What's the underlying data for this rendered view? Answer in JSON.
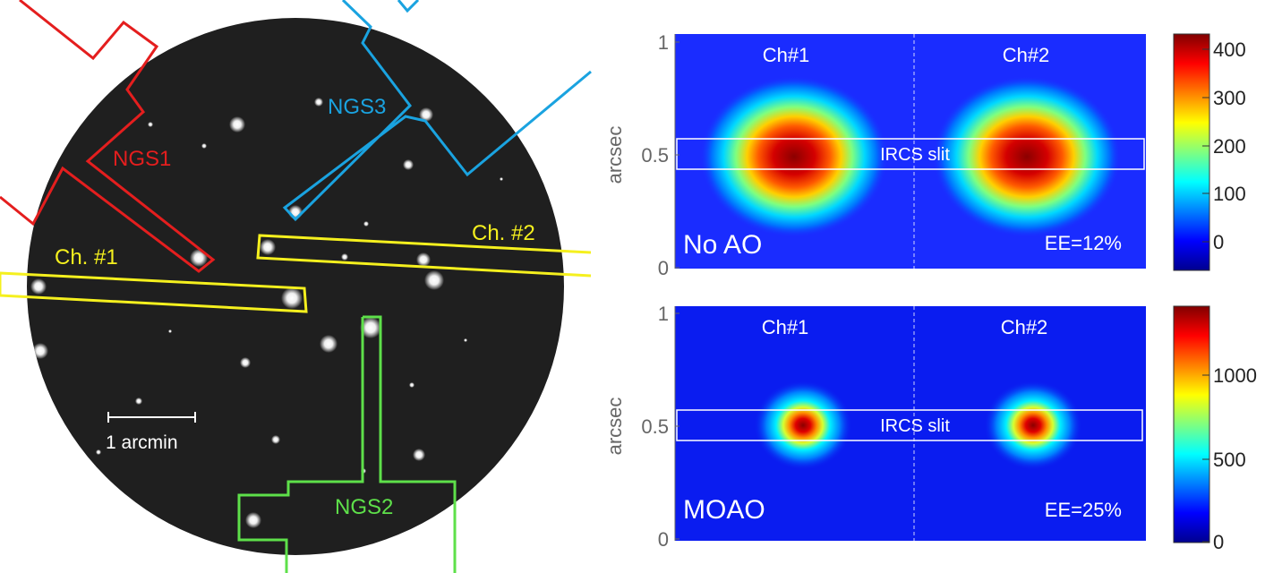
{
  "left_panel": {
    "labels": {
      "ngs1": "NGS1",
      "ngs2": "NGS2",
      "ngs3": "NGS3",
      "ch1": "Ch. #1",
      "ch2": "Ch. #2",
      "scale": "1 arcmin"
    },
    "colors": {
      "ngs1": "#e41e1e",
      "ngs2": "#5ee04a",
      "ngs3": "#1aa3e0",
      "channel": "#f5f01e",
      "sky": "#1f1f1f"
    }
  },
  "right_panels": {
    "ylabel": "arcsec",
    "yticks": [
      "1",
      "0.5",
      "0"
    ],
    "top": {
      "ch1_label": "Ch#1",
      "ch2_label": "Ch#2",
      "slit_label": "IRCS slit",
      "mode_label": "No AO",
      "ee_label": "EE=12%",
      "colorbar_ticks": [
        "400",
        "300",
        "200",
        "100",
        "0"
      ]
    },
    "bottom": {
      "ch1_label": "Ch#1",
      "ch2_label": "Ch#2",
      "slit_label": "IRCS slit",
      "mode_label": "MOAO",
      "ee_label": "EE=25%",
      "colorbar_ticks": [
        "1000",
        "500",
        "0"
      ]
    }
  }
}
